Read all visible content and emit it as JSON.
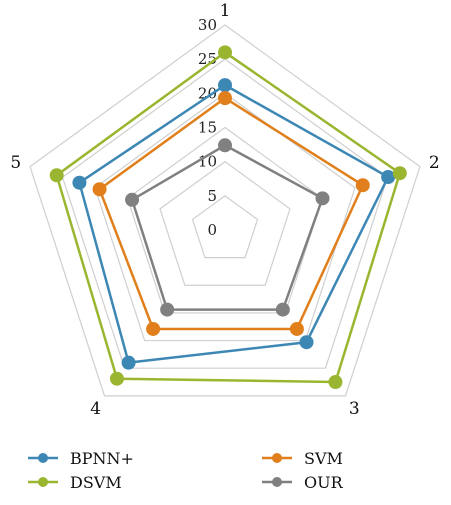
{
  "chart_data": {
    "type": "radar",
    "title": "",
    "categories": [
      "1",
      "2",
      "3",
      "4",
      "5"
    ],
    "rlim": [
      0,
      30
    ],
    "ticks": [
      0,
      5,
      10,
      15,
      20,
      25,
      30
    ],
    "grid": true,
    "legend_position": "bottom",
    "series": [
      {
        "name": "BPNN+",
        "color": "#3d87b5",
        "values": [
          21.2,
          25.1,
          20.3,
          24.0,
          22.4
        ]
      },
      {
        "name": "SVM",
        "color": "#e07f1b",
        "values": [
          19.3,
          21.2,
          17.9,
          17.9,
          19.3
        ]
      },
      {
        "name": "DSVM",
        "color": "#9ab630",
        "values": [
          26.0,
          26.9,
          27.5,
          26.9,
          25.9
        ]
      },
      {
        "name": "OUR",
        "color": "#808080",
        "values": [
          12.4,
          15.0,
          14.4,
          14.4,
          14.3
        ]
      }
    ]
  }
}
